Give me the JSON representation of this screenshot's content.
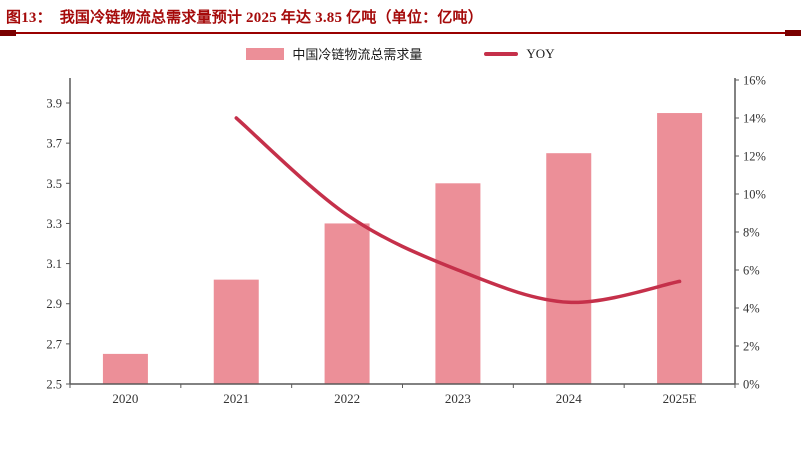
{
  "header": {
    "title": "图13：  我国冷链物流总需求量预计 2025 年达 3.85 亿吨（单位：亿吨）"
  },
  "legend": {
    "bar_label": "中国冷链物流总需求量",
    "line_label": "YOY"
  },
  "colors": {
    "bar": "#EC8F98",
    "line": "#C5304A",
    "title": "#A50A0A",
    "rule": "#990000",
    "rule_cap": "#7A0000",
    "axis": "#595959",
    "label": "#333333"
  },
  "chart_data": {
    "type": "bar+line combo",
    "categories": [
      "2020",
      "2021",
      "2022",
      "2023",
      "2024",
      "2025E"
    ],
    "series": [
      {
        "name": "中国冷链物流总需求量",
        "type": "bar",
        "axis": "left",
        "unit": "亿吨",
        "values": [
          2.65,
          3.02,
          3.3,
          3.5,
          3.65,
          3.85
        ]
      },
      {
        "name": "YOY",
        "type": "line",
        "axis": "right",
        "unit": "%",
        "values": [
          null,
          14.0,
          8.9,
          6.0,
          4.3,
          5.4
        ]
      }
    ],
    "left_axis": {
      "min": 2.5,
      "max": 3.9,
      "step": 0.2,
      "tick_labels": [
        "2.5",
        "2.7",
        "2.9",
        "3.1",
        "3.3",
        "3.5",
        "3.7",
        "3.9"
      ]
    },
    "right_axis": {
      "min": 0,
      "max": 16,
      "step": 2,
      "tick_labels": [
        "0%",
        "2%",
        "4%",
        "6%",
        "8%",
        "10%",
        "12%",
        "14%",
        "16%"
      ]
    },
    "grid": false,
    "legend_position": "top-center",
    "title": "图13：我国冷链物流总需求量预计 2025 年达 3.85 亿吨（单位：亿吨）"
  }
}
